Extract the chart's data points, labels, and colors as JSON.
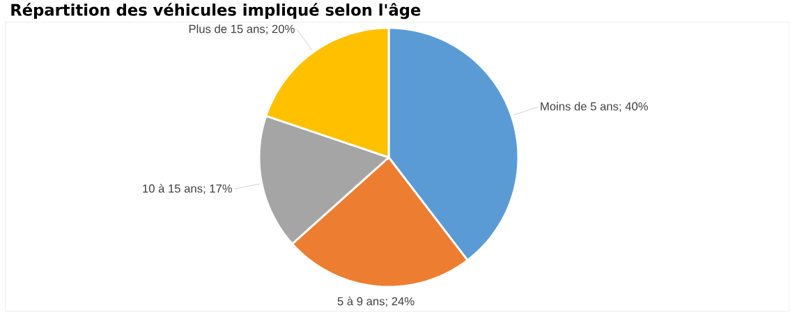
{
  "chart_data": {
    "type": "pie",
    "title": "Répartition des véhicules impliqué selon l'âge",
    "categories": [
      "Moins de 5 ans",
      "5 à 9 ans",
      "10 à 15 ans",
      "Plus de 15 ans"
    ],
    "values": [
      40,
      24,
      17,
      20
    ],
    "value_labels": [
      "; 40%",
      "; 24%",
      "; 17%",
      "; 20%"
    ],
    "colors": [
      "#5b9bd5",
      "#ed7d31",
      "#a5a5a5",
      "#ffc000"
    ]
  }
}
